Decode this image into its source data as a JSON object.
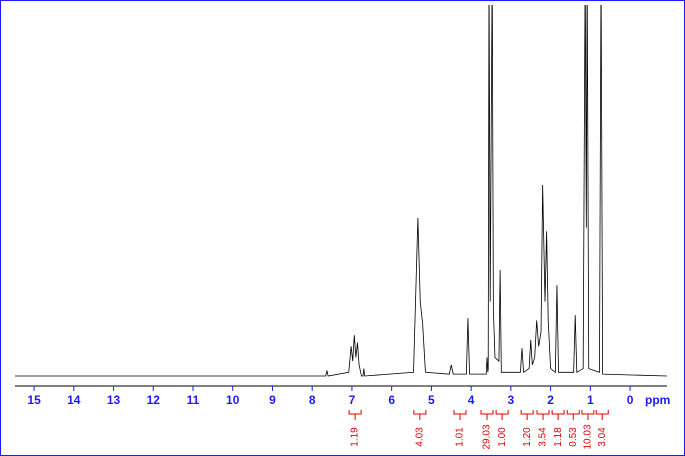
{
  "chart_data": {
    "type": "line",
    "x_label": "ppm",
    "xlim": [
      15.48,
      -0.93
    ],
    "ylim": [
      0,
      100
    ],
    "xticks": [
      15,
      14,
      13,
      12,
      11,
      10,
      9,
      8,
      7,
      6,
      5,
      4,
      3,
      2,
      1,
      0
    ],
    "series": [
      {
        "color": "#000000",
        "x": [
          15.48,
          7.66,
          7.63,
          7.6,
          7.08,
          7.02,
          6.98,
          6.94,
          6.9,
          6.86,
          6.82,
          6.76,
          6.72,
          6.7,
          6.68,
          5.45,
          5.34,
          5.28,
          5.22,
          5.15,
          4.55,
          4.5,
          4.45,
          4.12,
          4.08,
          4.04,
          3.62,
          3.6,
          3.58,
          3.57,
          3.55,
          3.52,
          3.47,
          3.44,
          3.4,
          3.3,
          3.27,
          3.24,
          2.76,
          2.72,
          2.68,
          2.54,
          2.5,
          2.46,
          2.4,
          2.35,
          2.3,
          2.24,
          2.2,
          2.14,
          2.1,
          2.06,
          2.0,
          1.88,
          1.84,
          1.8,
          1.42,
          1.38,
          1.34,
          1.18,
          1.13,
          1.1,
          1.08,
          1.04,
          0.77,
          0.73,
          0.69,
          -0.93
        ],
        "values": [
          0,
          0,
          1.5,
          0,
          1,
          8,
          4,
          11,
          5,
          9,
          3,
          0,
          0,
          2,
          0,
          1,
          42.6,
          20,
          14,
          1,
          0.5,
          3,
          0.5,
          0.5,
          15.6,
          0.5,
          0.5,
          5,
          1,
          2,
          110,
          20,
          110,
          18,
          5,
          4,
          28.6,
          1,
          1,
          7.5,
          1,
          2,
          9.7,
          3,
          5,
          15,
          8,
          12,
          51.5,
          20,
          39,
          15,
          2,
          1,
          24.5,
          1,
          1,
          16.4,
          1,
          2,
          110,
          40,
          110,
          2,
          1,
          110,
          0.5,
          0
        ]
      }
    ],
    "integrals": {
      "color": "#e00000",
      "centers": [
        6.92,
        5.29,
        4.28,
        3.6,
        3.22,
        2.59,
        2.19,
        1.81,
        1.43,
        1.06,
        0.7
      ],
      "values": [
        1.19,
        4.03,
        1.01,
        29.03,
        1.0,
        1.2,
        3.54,
        1.18,
        0.53,
        10.03,
        3.04
      ],
      "value_labels": [
        "1.19",
        "4.03",
        "1.01",
        "29.03",
        "1.00",
        "1.20",
        "3.54",
        "1.18",
        "0.53",
        "10.03",
        "3.04"
      ]
    }
  }
}
